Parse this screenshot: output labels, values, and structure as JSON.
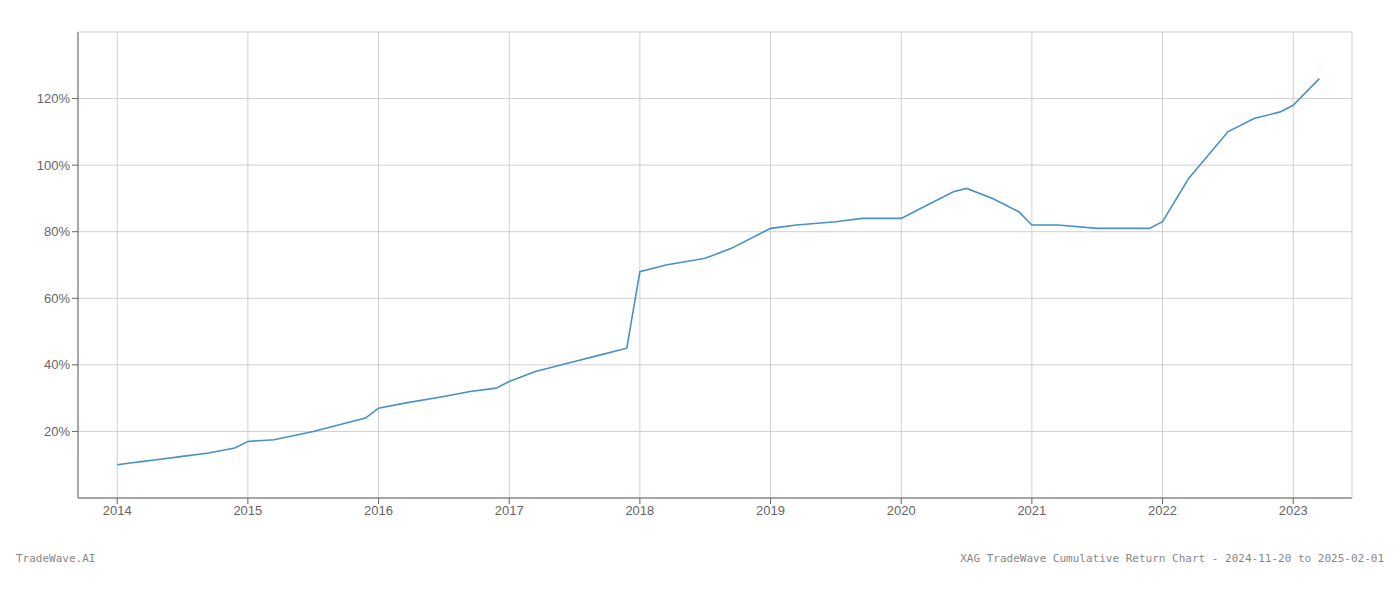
{
  "chart_data": {
    "type": "line",
    "title": "XAG TradeWave Cumulative Return Chart - 2024-11-20 to 2025-02-01",
    "annotations": [
      "TradeWave.AI"
    ],
    "x": [
      2014.0,
      2014.1,
      2014.2,
      2014.3,
      2014.5,
      2014.7,
      2014.9,
      2015.0,
      2015.2,
      2015.5,
      2015.7,
      2015.9,
      2016.0,
      2016.2,
      2016.5,
      2016.7,
      2016.9,
      2017.0,
      2017.2,
      2017.5,
      2017.7,
      2017.9,
      2018.0,
      2018.2,
      2018.5,
      2018.7,
      2018.9,
      2019.0,
      2019.2,
      2019.5,
      2019.7,
      2019.9,
      2020.0,
      2020.2,
      2020.4,
      2020.5,
      2020.7,
      2020.9,
      2021.0,
      2021.2,
      2021.5,
      2021.7,
      2021.9,
      2022.0,
      2022.2,
      2022.5,
      2022.7,
      2022.9,
      2023.0,
      2023.2
    ],
    "values": [
      10,
      10.5,
      11,
      11.5,
      12.5,
      13.5,
      15,
      17,
      17.5,
      20,
      22,
      24,
      27,
      28.5,
      30.5,
      32,
      33,
      35,
      38,
      41,
      43,
      45,
      68,
      70,
      72,
      75,
      79,
      81,
      82,
      83,
      84,
      84,
      84,
      88,
      92,
      93,
      90,
      86,
      82,
      82,
      81,
      81,
      81,
      83,
      96,
      110,
      114,
      116,
      118,
      126
    ],
    "color": "#4a90c4",
    "xlim": [
      2013.7,
      2023.45
    ],
    "ylim": [
      0,
      140
    ],
    "xticks": [
      2014,
      2015,
      2016,
      2017,
      2018,
      2019,
      2020,
      2021,
      2022,
      2023
    ],
    "yticks": [
      {
        "value": 20,
        "label": "20%"
      },
      {
        "value": 40,
        "label": "40%"
      },
      {
        "value": 60,
        "label": "60%"
      },
      {
        "value": 80,
        "label": "80%"
      },
      {
        "value": 100,
        "label": "100%"
      },
      {
        "value": 120,
        "label": "120%"
      }
    ],
    "grid": true
  }
}
